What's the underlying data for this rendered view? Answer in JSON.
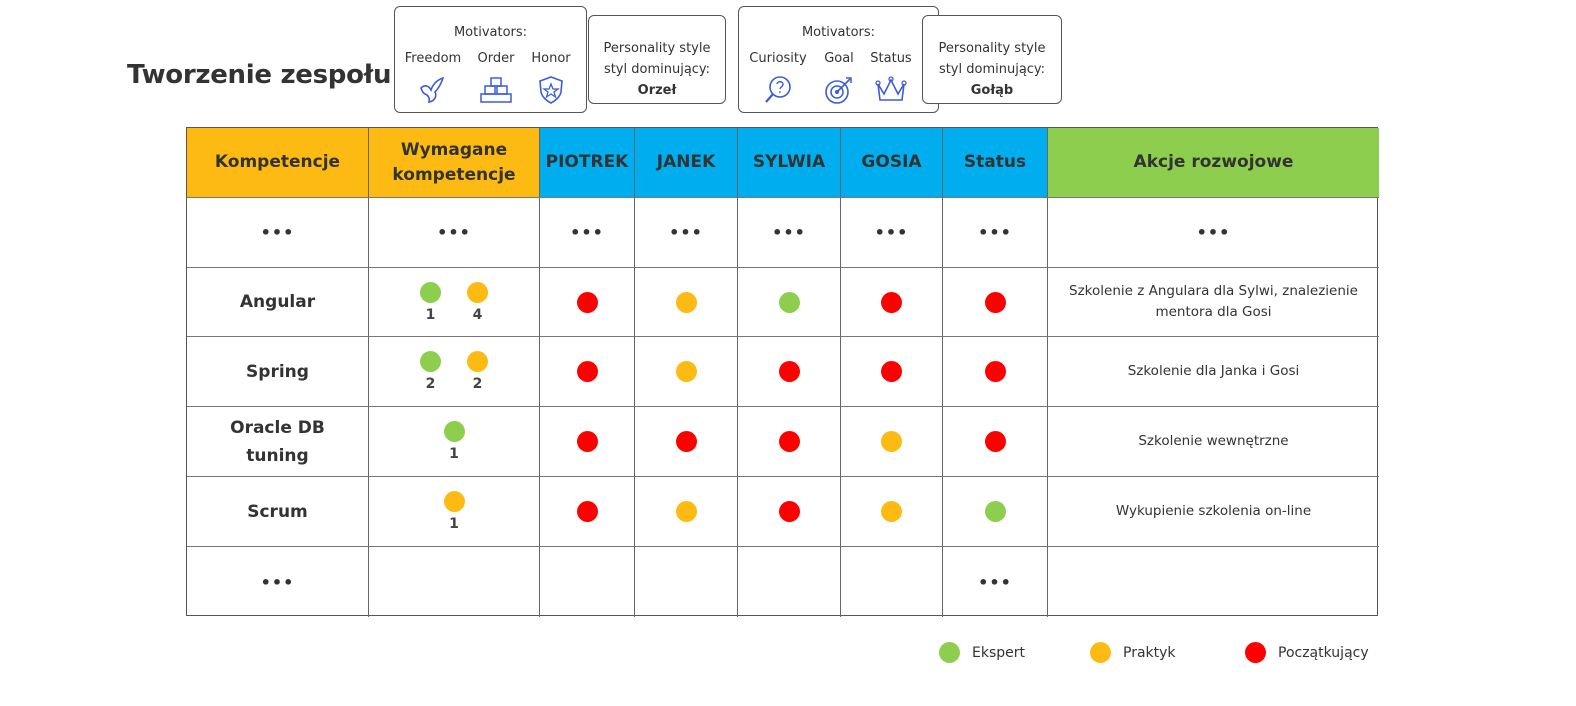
{
  "title": "Tworzenie zespołu",
  "colors": {
    "expert": "#8DCE4F",
    "practitioner": "#FDBA12",
    "beginner": "#FF0000",
    "header_orange": "#FDBA12",
    "header_blue": "#00AEEF",
    "header_green": "#8DCE4F"
  },
  "callouts": [
    {
      "motivators_title": "Motivators:",
      "motivators": [
        {
          "label": "Freedom",
          "icon": "bird-icon"
        },
        {
          "label": "Order",
          "icon": "blocks-icon"
        },
        {
          "label": "Honor",
          "icon": "shield-star-icon"
        }
      ],
      "personality_line1": "Personality style",
      "personality_line2": "styl dominujący:",
      "personality_name": "Orzeł"
    },
    {
      "motivators_title": "Motivators:",
      "motivators": [
        {
          "label": "Curiosity",
          "icon": "magnifier-question-icon"
        },
        {
          "label": "Goal",
          "icon": "target-icon"
        },
        {
          "label": "Status",
          "icon": "crown-icon"
        }
      ],
      "personality_line1": "Personality style",
      "personality_line2": "styl dominujący:",
      "personality_name": "Gołąb"
    }
  ],
  "table": {
    "headers": [
      "Kompetencje",
      "Wymagane kompetencje",
      "PIOTREK",
      "JANEK",
      "SYLWIA",
      "GOSIA",
      "Status",
      "Akcje rozwojowe"
    ],
    "header_lines": {
      "wymagane_1": "Wymagane",
      "wymagane_2": "kompetencje"
    },
    "ellipsis": "•••",
    "rows": [
      {
        "skill": "Angular",
        "required": [
          {
            "level": "expert",
            "count": "1"
          },
          {
            "level": "practitioner",
            "count": "4"
          }
        ],
        "people": [
          "beginner",
          "practitioner",
          "expert",
          "beginner"
        ],
        "status": "beginner",
        "action": "Szkolenie z Angulara dla Sylwi, znalezienie mentora dla Gosi"
      },
      {
        "skill": "Spring",
        "required": [
          {
            "level": "expert",
            "count": "2"
          },
          {
            "level": "practitioner",
            "count": "2"
          }
        ],
        "people": [
          "beginner",
          "practitioner",
          "beginner",
          "beginner"
        ],
        "status": "beginner",
        "action": "Szkolenie dla Janka i Gosi"
      },
      {
        "skill": "Oracle DB tuning",
        "skill_line1": "Oracle DB",
        "skill_line2": "tuning",
        "required": [
          {
            "level": "expert",
            "count": "1"
          }
        ],
        "people": [
          "beginner",
          "beginner",
          "beginner",
          "practitioner"
        ],
        "status": "beginner",
        "action": "Szkolenie wewnętrzne"
      },
      {
        "skill": "Scrum",
        "required": [
          {
            "level": "practitioner",
            "count": "1"
          }
        ],
        "people": [
          "beginner",
          "practitioner",
          "beginner",
          "practitioner"
        ],
        "status": "expert",
        "action": "Wykupienie szkolenia on-line"
      }
    ]
  },
  "legend": [
    {
      "label": "Ekspert",
      "level": "expert"
    },
    {
      "label": "Praktyk",
      "level": "practitioner"
    },
    {
      "label": "Początkujący",
      "level": "beginner"
    }
  ]
}
